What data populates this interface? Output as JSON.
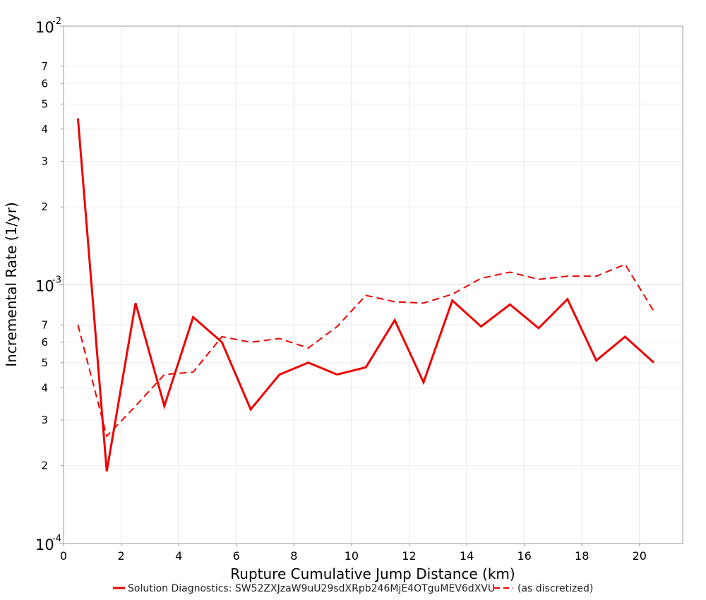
{
  "chart_data": {
    "type": "line",
    "xlabel": "Rupture Cumulative Jump Distance (km)",
    "ylabel": "Incremental Rate (1/yr)",
    "xlim": [
      0,
      21.5
    ],
    "ylim": [
      0.0001,
      0.01
    ],
    "y_scale": "log",
    "grid": true,
    "legend_position": "bottom",
    "x_ticks": [
      0,
      2,
      4,
      6,
      8,
      10,
      12,
      14,
      16,
      18,
      20
    ],
    "x_tick_labels": [
      "0",
      "2",
      "4",
      "6",
      "8",
      "10",
      "12",
      "14",
      "16",
      "18",
      "20"
    ],
    "y_major_ticks": [
      {
        "value": 0.0001,
        "base": "10",
        "exp": "-4"
      },
      {
        "value": 0.001,
        "base": "10",
        "exp": "-3"
      },
      {
        "value": 0.01,
        "base": "10",
        "exp": "-2"
      }
    ],
    "y_minor_ticks": [
      {
        "value": 0.0002,
        "label": "2"
      },
      {
        "value": 0.0003,
        "label": "3"
      },
      {
        "value": 0.0004,
        "label": "4"
      },
      {
        "value": 0.0005,
        "label": "5"
      },
      {
        "value": 0.0006,
        "label": "6"
      },
      {
        "value": 0.0007,
        "label": "7"
      },
      {
        "value": 0.002,
        "label": "2"
      },
      {
        "value": 0.003,
        "label": "3"
      },
      {
        "value": 0.004,
        "label": "4"
      },
      {
        "value": 0.005,
        "label": "5"
      },
      {
        "value": 0.006,
        "label": "6"
      },
      {
        "value": 0.007,
        "label": "7"
      }
    ],
    "series": [
      {
        "name": "Solution Diagnostics: SW52ZXJzaW9uU29sdXRpb246MjE4OTguMEV6dXVU",
        "color": "#ee0000",
        "style": "solid",
        "x": [
          0.5,
          1.5,
          2.5,
          3.5,
          4.5,
          5.5,
          6.5,
          7.5,
          8.5,
          9.5,
          10.5,
          11.5,
          12.5,
          13.5,
          14.5,
          15.5,
          16.5,
          17.5,
          18.5,
          19.5,
          20.5
        ],
        "y": [
          0.0044,
          0.00019,
          0.00085,
          0.00034,
          0.00075,
          0.0006,
          0.00033,
          0.00045,
          0.0005,
          0.00045,
          0.00048,
          0.00073,
          0.00042,
          0.00087,
          0.00069,
          0.00084,
          0.00068,
          0.00088,
          0.00051,
          0.00063,
          0.0005
        ]
      },
      {
        "name": "(as discretized)",
        "color": "#ee0000",
        "style": "dashed",
        "x": [
          0.5,
          1.5,
          2.5,
          3.5,
          4.5,
          5.5,
          6.5,
          7.5,
          8.5,
          9.5,
          10.5,
          11.5,
          12.5,
          13.5,
          14.5,
          15.5,
          16.5,
          17.5,
          18.5,
          19.5,
          20.5
        ],
        "y": [
          0.0007,
          0.00026,
          0.00034,
          0.00045,
          0.00046,
          0.00063,
          0.0006,
          0.00062,
          0.00057,
          0.00069,
          0.00091,
          0.00086,
          0.00085,
          0.00092,
          0.00106,
          0.00112,
          0.00105,
          0.00108,
          0.00108,
          0.0012,
          0.00079
        ]
      }
    ]
  }
}
